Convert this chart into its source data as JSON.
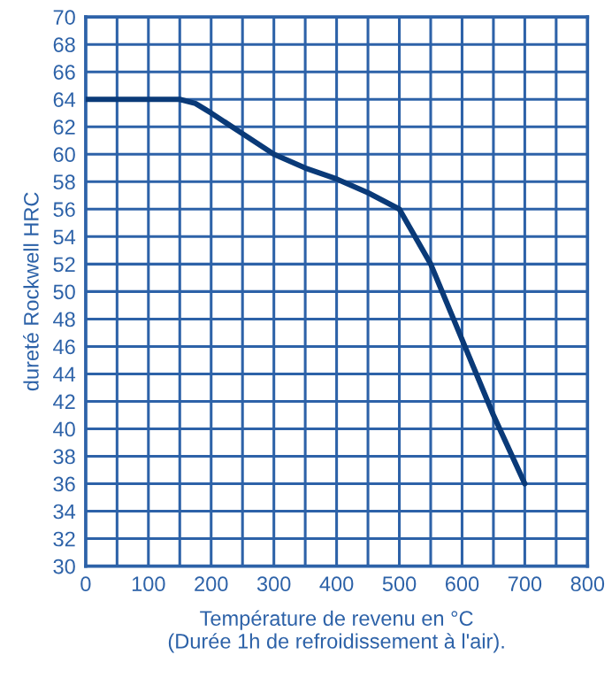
{
  "chart_data": {
    "type": "line",
    "xlabel": "Température de revenu en °C\n(Durée 1h de refroidissement à l'air).",
    "ylabel": "dureté Rockwell HRC",
    "x": [
      0,
      150,
      175,
      200,
      250,
      300,
      350,
      400,
      450,
      500,
      525,
      550,
      600,
      650,
      700
    ],
    "series": [
      {
        "color": "#0a3a78",
        "values": [
          64,
          64,
          63.7,
          63,
          61.5,
          60,
          59,
          58.2,
          57.2,
          56,
          54,
          52,
          46.5,
          41,
          36
        ]
      }
    ],
    "xlim": [
      0,
      800
    ],
    "ylim": [
      30,
      70
    ],
    "xticks": [
      0,
      {
        "value": 50,
        "label": null
      },
      100,
      {
        "value": 150,
        "label": null
      },
      200,
      {
        "value": 250,
        "label": null
      },
      300,
      {
        "value": 350,
        "label": null
      },
      400,
      {
        "value": 450,
        "label": null
      },
      500,
      {
        "value": 550,
        "label": null
      },
      600,
      {
        "value": 650,
        "label": null
      },
      700,
      {
        "value": 750,
        "label": null
      },
      800
    ],
    "yticks": [
      30,
      32,
      34,
      36,
      38,
      40,
      42,
      44,
      46,
      48,
      50,
      52,
      54,
      56,
      58,
      60,
      62,
      64,
      66,
      68,
      70
    ],
    "grid": true,
    "marker": "none",
    "line_style": "solid",
    "legend": false
  }
}
